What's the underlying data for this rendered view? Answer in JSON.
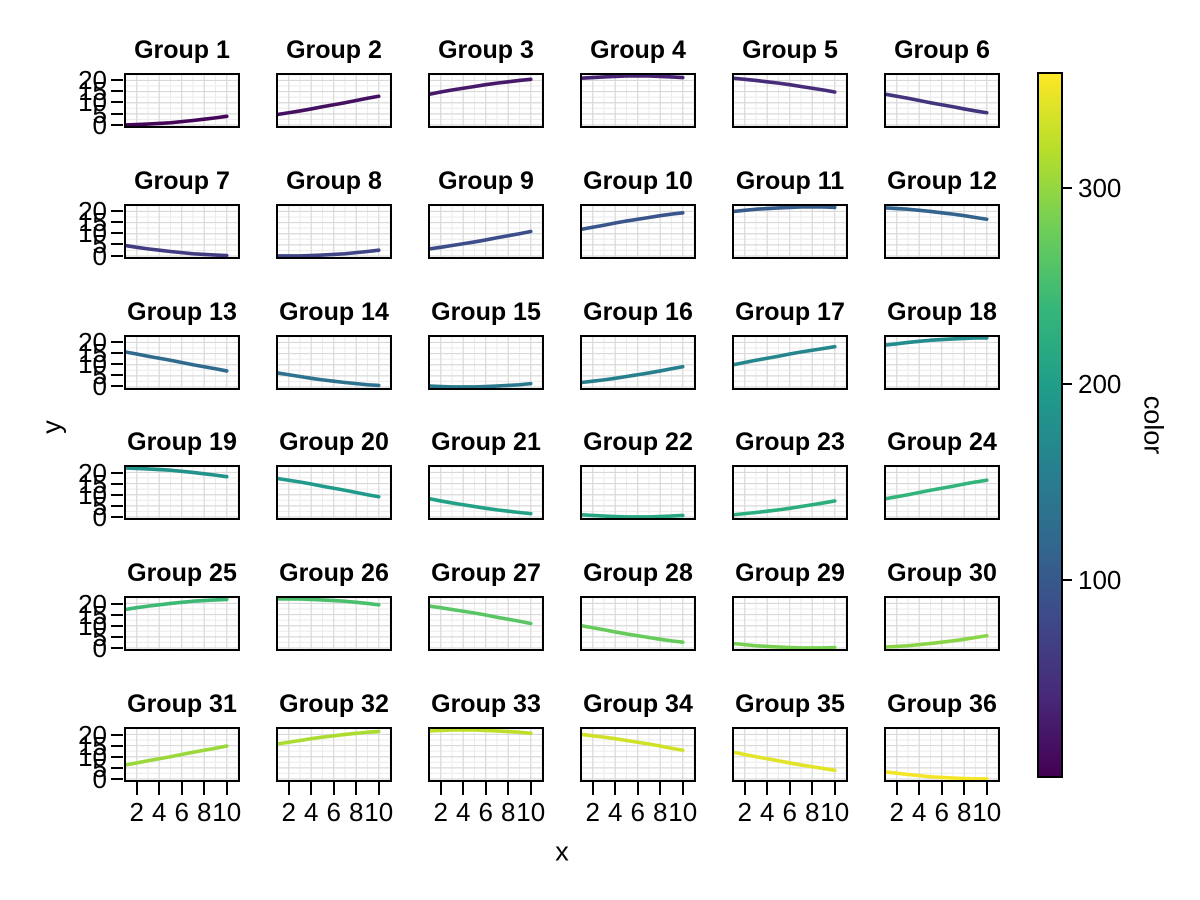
{
  "figure": {
    "background": "#ffffff",
    "text_color": "#000000"
  },
  "chart_data": {
    "type": "line",
    "title": "",
    "xlabel": "x",
    "ylabel": "y",
    "facet_grid": {
      "rows": 6,
      "cols": 6
    },
    "x_ticks": [
      2,
      4,
      6,
      8,
      10
    ],
    "y_ticks": [
      0,
      5,
      10,
      15,
      20
    ],
    "x_minor": [
      1,
      3,
      5,
      7,
      9,
      11
    ],
    "y_minor": [
      2.5,
      7.5,
      12.5,
      17.5,
      22.5
    ],
    "xlim": [
      0.87,
      11.18
    ],
    "ylim": [
      -1.36,
      23.35
    ],
    "grid": "on",
    "x": [
      1,
      2,
      3,
      4,
      5,
      6,
      7,
      8,
      9,
      10
    ],
    "series": [
      {
        "name": "Group 1",
        "color_value": 5,
        "line_color": "#450659",
        "y": [
          0.0,
          0.2,
          0.4,
          0.7,
          1.0,
          1.5,
          2.0,
          2.6,
          3.2,
          3.9
        ]
      },
      {
        "name": "Group 2",
        "color_value": 15,
        "line_color": "#451062",
        "y": [
          4.7,
          5.5,
          6.3,
          7.2,
          8.2,
          9.1,
          10.0,
          11.0,
          12.0,
          12.9
        ]
      },
      {
        "name": "Group 3",
        "color_value": 25,
        "line_color": "#47196b",
        "y": [
          13.8,
          14.8,
          15.7,
          16.5,
          17.3,
          18.1,
          18.8,
          19.4,
          20.0,
          20.5
        ]
      },
      {
        "name": "Group 4",
        "color_value": 35,
        "line_color": "#482374",
        "y": [
          21.0,
          21.3,
          21.6,
          21.8,
          22.0,
          22.0,
          22.0,
          21.8,
          21.6,
          21.3
        ]
      },
      {
        "name": "Group 5",
        "color_value": 45,
        "line_color": "#472c7a",
        "y": [
          21.0,
          20.5,
          20.0,
          19.4,
          18.8,
          18.1,
          17.3,
          16.5,
          15.7,
          14.8
        ]
      },
      {
        "name": "Group 6",
        "color_value": 55,
        "line_color": "#44347e",
        "y": [
          13.8,
          12.9,
          12.0,
          11.0,
          10.0,
          9.1,
          8.2,
          7.2,
          6.3,
          5.5
        ]
      },
      {
        "name": "Group 7",
        "color_value": 65,
        "line_color": "#423d83",
        "y": [
          4.7,
          3.9,
          3.2,
          2.6,
          2.0,
          1.5,
          1.0,
          0.7,
          0.4,
          0.2
        ]
      },
      {
        "name": "Group 8",
        "color_value": 75,
        "line_color": "#3f4587",
        "y": [
          0.0,
          0.0,
          0.0,
          0.2,
          0.4,
          0.7,
          1.0,
          1.5,
          2.0,
          2.6
        ]
      },
      {
        "name": "Group 9",
        "color_value": 85,
        "line_color": "#3c4d8a",
        "y": [
          3.2,
          3.9,
          4.7,
          5.5,
          6.3,
          7.2,
          8.2,
          9.1,
          10.0,
          11.0
        ]
      },
      {
        "name": "Group 10",
        "color_value": 95,
        "line_color": "#39558b",
        "y": [
          12.0,
          12.9,
          13.8,
          14.8,
          15.7,
          16.5,
          17.3,
          18.1,
          18.8,
          19.4
        ]
      },
      {
        "name": "Group 11",
        "color_value": 105,
        "line_color": "#365c8c",
        "y": [
          20.0,
          20.5,
          21.0,
          21.3,
          21.6,
          21.8,
          22.0,
          22.0,
          22.0,
          21.8
        ]
      },
      {
        "name": "Group 12",
        "color_value": 115,
        "line_color": "#33648d",
        "y": [
          21.6,
          21.3,
          21.0,
          20.5,
          20.0,
          19.4,
          18.8,
          18.1,
          17.3,
          16.5
        ]
      },
      {
        "name": "Group 13",
        "color_value": 125,
        "line_color": "#306b8e",
        "y": [
          15.7,
          14.8,
          13.8,
          12.9,
          12.0,
          11.0,
          10.0,
          9.1,
          8.2,
          7.2
        ]
      },
      {
        "name": "Group 14",
        "color_value": 135,
        "line_color": "#2d728e",
        "y": [
          6.3,
          5.5,
          4.7,
          3.9,
          3.2,
          2.6,
          2.0,
          1.5,
          1.0,
          0.7
        ]
      },
      {
        "name": "Group 15",
        "color_value": 145,
        "line_color": "#2a788e",
        "y": [
          0.4,
          0.2,
          0.0,
          0.0,
          0.0,
          0.2,
          0.4,
          0.7,
          1.0,
          1.5
        ]
      },
      {
        "name": "Group 16",
        "color_value": 155,
        "line_color": "#277f8e",
        "y": [
          2.0,
          2.6,
          3.2,
          3.9,
          4.7,
          5.5,
          6.3,
          7.2,
          8.2,
          9.1
        ]
      },
      {
        "name": "Group 17",
        "color_value": 165,
        "line_color": "#25868d",
        "y": [
          10.0,
          11.0,
          12.0,
          12.9,
          13.8,
          14.8,
          15.7,
          16.5,
          17.3,
          18.1
        ]
      },
      {
        "name": "Group 18",
        "color_value": 175,
        "line_color": "#238c8c",
        "y": [
          18.8,
          19.4,
          20.0,
          20.5,
          21.0,
          21.3,
          21.6,
          21.8,
          22.0,
          22.0
        ]
      },
      {
        "name": "Group 19",
        "color_value": 185,
        "line_color": "#22938b",
        "y": [
          22.0,
          21.8,
          21.6,
          21.3,
          21.0,
          20.5,
          20.0,
          19.4,
          18.8,
          18.1
        ]
      },
      {
        "name": "Group 20",
        "color_value": 195,
        "line_color": "#209a8a",
        "y": [
          17.3,
          16.5,
          15.7,
          14.8,
          13.8,
          12.9,
          12.0,
          11.0,
          10.0,
          9.1
        ]
      },
      {
        "name": "Group 21",
        "color_value": 205,
        "line_color": "#22a187",
        "y": [
          8.2,
          7.2,
          6.3,
          5.5,
          4.7,
          3.9,
          3.2,
          2.6,
          2.0,
          1.5
        ]
      },
      {
        "name": "Group 22",
        "color_value": 215,
        "line_color": "#27a783",
        "y": [
          1.0,
          0.7,
          0.4,
          0.2,
          0.0,
          0.0,
          0.0,
          0.2,
          0.4,
          0.7
        ]
      },
      {
        "name": "Group 23",
        "color_value": 225,
        "line_color": "#2dae7f",
        "y": [
          1.0,
          1.5,
          2.0,
          2.6,
          3.2,
          3.9,
          4.7,
          5.5,
          6.3,
          7.2
        ]
      },
      {
        "name": "Group 24",
        "color_value": 235,
        "line_color": "#32b47b",
        "y": [
          8.2,
          9.1,
          10.0,
          11.0,
          12.0,
          12.9,
          13.8,
          14.8,
          15.7,
          16.5
        ]
      },
      {
        "name": "Group 25",
        "color_value": 245,
        "line_color": "#3cba75",
        "y": [
          17.3,
          18.1,
          18.8,
          19.4,
          20.0,
          20.5,
          21.0,
          21.3,
          21.6,
          21.8
        ]
      },
      {
        "name": "Group 26",
        "color_value": 255,
        "line_color": "#4ac06d",
        "y": [
          22.0,
          22.0,
          22.0,
          21.8,
          21.6,
          21.3,
          21.0,
          20.5,
          20.0,
          19.4
        ]
      },
      {
        "name": "Group 27",
        "color_value": 265,
        "line_color": "#59c564",
        "y": [
          18.8,
          18.1,
          17.3,
          16.5,
          15.7,
          14.8,
          13.8,
          12.9,
          12.0,
          11.0
        ]
      },
      {
        "name": "Group 28",
        "color_value": 275,
        "line_color": "#67cb5c",
        "y": [
          10.0,
          9.1,
          8.2,
          7.2,
          6.3,
          5.5,
          4.7,
          3.9,
          3.2,
          2.6
        ]
      },
      {
        "name": "Group 29",
        "color_value": 285,
        "line_color": "#77d052",
        "y": [
          2.0,
          1.5,
          1.0,
          0.7,
          0.4,
          0.2,
          0.0,
          0.0,
          0.0,
          0.2
        ]
      },
      {
        "name": "Group 30",
        "color_value": 295,
        "line_color": "#89d447",
        "y": [
          0.4,
          0.7,
          1.0,
          1.5,
          2.0,
          2.6,
          3.2,
          3.9,
          4.7,
          5.5
        ]
      },
      {
        "name": "Group 31",
        "color_value": 305,
        "line_color": "#9ad83c",
        "y": [
          6.3,
          7.2,
          8.2,
          9.1,
          10.0,
          11.0,
          12.0,
          12.9,
          13.8,
          14.8
        ]
      },
      {
        "name": "Group 32",
        "color_value": 315,
        "line_color": "#acdc31",
        "y": [
          15.7,
          16.5,
          17.3,
          18.1,
          18.8,
          19.4,
          20.0,
          20.5,
          21.0,
          21.3
        ]
      },
      {
        "name": "Group 33",
        "color_value": 325,
        "line_color": "#bedf2a",
        "y": [
          21.6,
          21.8,
          22.0,
          22.0,
          22.0,
          21.8,
          21.6,
          21.3,
          21.0,
          20.5
        ]
      },
      {
        "name": "Group 34",
        "color_value": 335,
        "line_color": "#d0e129",
        "y": [
          20.0,
          19.4,
          18.8,
          18.1,
          17.3,
          16.5,
          15.7,
          14.8,
          13.8,
          12.9
        ]
      },
      {
        "name": "Group 35",
        "color_value": 345,
        "line_color": "#e2e427",
        "y": [
          12.0,
          11.0,
          10.0,
          9.1,
          8.2,
          7.2,
          6.3,
          5.5,
          4.7,
          3.9
        ]
      },
      {
        "name": "Group 36",
        "color_value": 355,
        "line_color": "#f4e626",
        "y": [
          3.2,
          2.6,
          2.0,
          1.5,
          1.0,
          0.7,
          0.4,
          0.2,
          0.0,
          0.0
        ]
      }
    ],
    "colorbar": {
      "label": "color",
      "ticks": [
        100,
        200,
        300
      ],
      "domain": [
        0,
        360
      ],
      "viridis_stops": [
        "#440154",
        "#482878",
        "#3e4989",
        "#31688e",
        "#26828e",
        "#1f9e89",
        "#35b779",
        "#6ece58",
        "#b5de2b",
        "#fde725"
      ]
    },
    "style": {
      "panel_border": "#000000",
      "grid_major": "#d9d9d9",
      "grid_minor": "#ebebeb",
      "panel_bg": "#ffffff"
    }
  }
}
